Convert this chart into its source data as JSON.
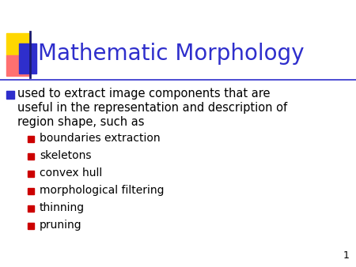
{
  "title": "Mathematic Morphology",
  "title_color": "#2E2ECC",
  "background_color": "#FFFFFF",
  "slide_number": "1",
  "main_bullet_color": "#000000",
  "main_bullet_marker_color": "#2E2ECC",
  "sub_bullets": [
    "boundaries extraction",
    "skeletons",
    "convex hull",
    "morphological filtering",
    "thinning",
    "pruning"
  ],
  "sub_bullet_marker_color": "#CC0000",
  "text_color": "#000000",
  "title_font_size": 20,
  "main_bullet_font_size": 10.5,
  "sub_bullet_font_size": 10,
  "decoration_colors": {
    "yellow": "#FFD700",
    "pink": "#FF7070",
    "blue": "#2E2ECC",
    "dark_line": "#1A1A6E"
  },
  "divider_color": "#2E2ECC",
  "number_color": "#000000",
  "main_lines": [
    "used to extract image components that are",
    "useful in the representation and description of",
    "region shape, such as"
  ]
}
